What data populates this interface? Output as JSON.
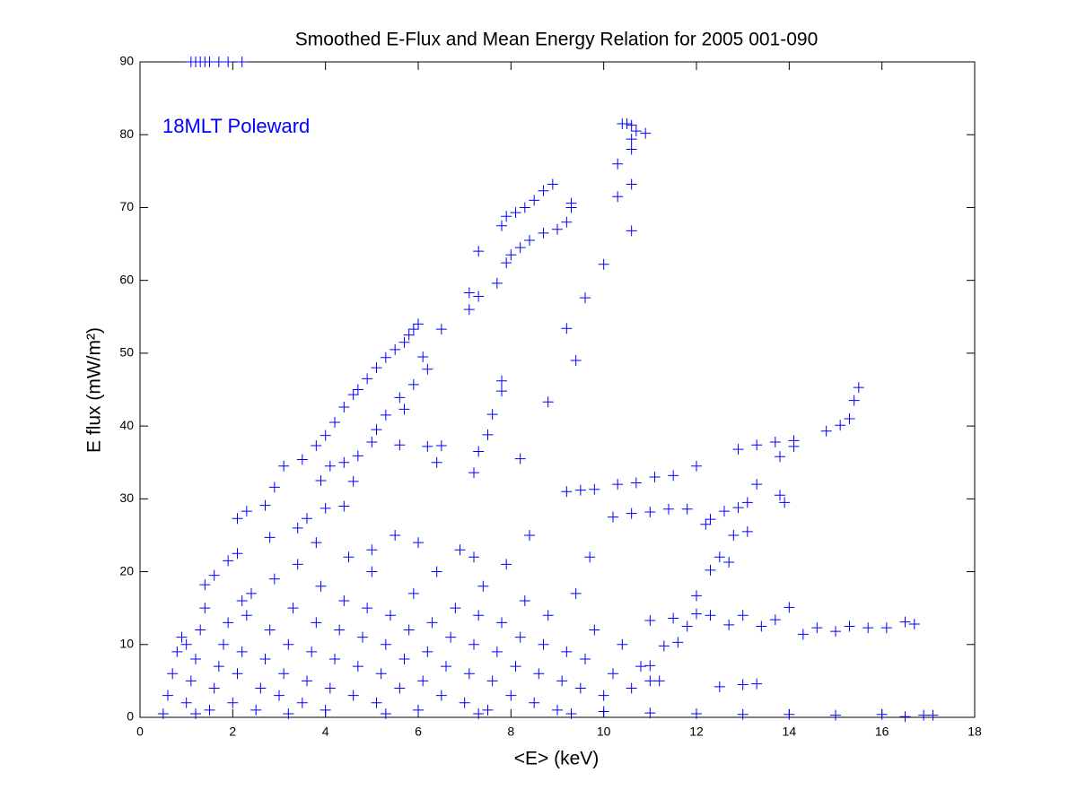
{
  "chart_data": {
    "type": "scatter",
    "title": "Smoothed E-Flux and Mean Energy Relation for 2005 001-090",
    "xlabel": "<E> (keV)",
    "ylabel": "E flux (mW/m²)",
    "annotation": "18MLT Poleward",
    "color": "#0000ff",
    "annotation_color": "#0000ff",
    "marker": "plus",
    "xlim": [
      0,
      18
    ],
    "ylim": [
      0,
      90
    ],
    "xticks": [
      0,
      2,
      4,
      6,
      8,
      10,
      12,
      14,
      16,
      18
    ],
    "yticks": [
      0,
      10,
      20,
      30,
      40,
      50,
      60,
      70,
      80,
      90
    ],
    "grid": false,
    "x": [
      1.1,
      1.2,
      1.3,
      1.4,
      1.5,
      1.7,
      1.9,
      2.2,
      10.4,
      10.5,
      10.6,
      10.7,
      10.9,
      10.6,
      10.6,
      10.3,
      10.3,
      10.6,
      10.6,
      10.0,
      7.8,
      7.9,
      8.1,
      8.3,
      8.5,
      8.7,
      8.9,
      9.3,
      9.3,
      9.2,
      9.0,
      8.7,
      8.4,
      8.2,
      8.0,
      7.9,
      7.7,
      7.3,
      7.1,
      7.1,
      7.3,
      9.2,
      9.6,
      9.4,
      8.8,
      6.0,
      5.9,
      5.8,
      5.7,
      5.5,
      5.3,
      5.1,
      4.9,
      4.7,
      4.6,
      4.4,
      4.2,
      4.0,
      3.8,
      3.5,
      3.1,
      2.9,
      2.7,
      2.3,
      2.1,
      2.1,
      1.9,
      1.6,
      1.4,
      6.1,
      6.2,
      6.5,
      5.9,
      5.6,
      5.7,
      5.3,
      5.1,
      5.0,
      5.6,
      6.2,
      6.5,
      6.4,
      7.8,
      7.8,
      7.6,
      7.5,
      7.3,
      7.2,
      8.2,
      4.7,
      4.4,
      4.1,
      3.9,
      4.6,
      4.4,
      4.0,
      3.6,
      3.4,
      2.8,
      9.2,
      9.5,
      9.8,
      10.3,
      10.7,
      11.1,
      11.5,
      12.0,
      12.9,
      13.3,
      13.7,
      14.1,
      14.1,
      14.8,
      15.1,
      15.3,
      15.4,
      15.5,
      13.8,
      13.3,
      13.8,
      13.9,
      13.1,
      12.9,
      12.6,
      12.2,
      10.2,
      10.6,
      11.0,
      11.4,
      11.8,
      12.3,
      13.1,
      12.8,
      12.5,
      12.7,
      12.3,
      12.0,
      11.0,
      11.5,
      12.0,
      12.3,
      12.7,
      13.0,
      13.4,
      13.7,
      14.0,
      14.3,
      14.6,
      15.0,
      15.3,
      15.7,
      16.1,
      16.5,
      16.7,
      11.8,
      11.3,
      11.6,
      11.0,
      12.5,
      13.0,
      13.3,
      10,
      11,
      12,
      13,
      14,
      15,
      16,
      16.5,
      16.9,
      17.1,
      0.5,
      0.6,
      0.7,
      0.8,
      0.9,
      1.0,
      1.1,
      1.2,
      1.3,
      1.4,
      1.5,
      1.6,
      1.7,
      1.8,
      1.9,
      2.0,
      2.1,
      2.2,
      2.3,
      2.4,
      2.5,
      2.6,
      2.7,
      2.8,
      2.9,
      3.0,
      3.1,
      3.2,
      3.3,
      3.4,
      3.5,
      3.6,
      3.7,
      3.8,
      3.9,
      4.0,
      4.1,
      4.2,
      4.3,
      4.4,
      4.5,
      4.6,
      4.7,
      4.8,
      4.9,
      5.0,
      5.1,
      5.2,
      5.3,
      5.4,
      5.5,
      5.6,
      5.7,
      5.8,
      5.9,
      6.0,
      6.1,
      6.2,
      6.3,
      6.4,
      6.5,
      6.6,
      6.7,
      6.8,
      6.9,
      7.0,
      7.1,
      7.2,
      7.3,
      7.4,
      7.5,
      7.6,
      7.7,
      7.8,
      7.9,
      8.0,
      8.1,
      8.2,
      8.3,
      8.5,
      8.6,
      8.7,
      8.8,
      9.0,
      9.1,
      9.2,
      9.4,
      9.5,
      9.6,
      9.8,
      10.0,
      10.2,
      10.4,
      10.6,
      10.8,
      11.0,
      11.2,
      9.7,
      8.4,
      7.2,
      6.0,
      5.0,
      3.8,
      2.2,
      1.0,
      1.2,
      3.2,
      5.3,
      7.3,
      9.3
    ],
    "values": [
      90,
      90,
      90,
      90,
      90,
      90,
      90,
      90,
      81.5,
      81.5,
      81.3,
      80.5,
      80.2,
      79.4,
      78,
      76,
      71.5,
      73.2,
      66.8,
      62.2,
      67.5,
      68.8,
      69.3,
      70,
      71,
      72.3,
      73.2,
      70.6,
      70,
      68,
      67,
      66.5,
      65.5,
      64.5,
      63.5,
      62.4,
      59.6,
      64,
      58.3,
      56,
      57.8,
      53.4,
      57.6,
      49,
      43.3,
      54,
      53.3,
      52.5,
      51.5,
      50.5,
      49.4,
      48,
      46.5,
      45,
      44.3,
      42.6,
      40.5,
      38.7,
      37.3,
      35.4,
      34.5,
      31.6,
      29.1,
      28.3,
      27.3,
      22.5,
      21.5,
      19.5,
      18.2,
      49.5,
      47.8,
      53.3,
      45.7,
      43.9,
      42.3,
      41.5,
      39.5,
      37.8,
      37.4,
      37.2,
      37.3,
      35,
      46.2,
      44.8,
      41.6,
      38.8,
      36.5,
      33.6,
      35.5,
      35.9,
      35,
      34.5,
      32.5,
      32.4,
      29,
      28.7,
      27.3,
      26,
      24.7,
      31,
      31.2,
      31.3,
      32,
      32.2,
      33,
      33.2,
      34.5,
      36.8,
      37.4,
      37.8,
      38,
      37.2,
      39.3,
      40.1,
      41,
      43.5,
      45.3,
      35.8,
      32,
      30.5,
      29.5,
      29.5,
      28.8,
      28.3,
      26.5,
      27.5,
      28,
      28.2,
      28.6,
      28.6,
      27.2,
      25.5,
      25,
      22,
      21.3,
      20.2,
      16.7,
      13.3,
      13.6,
      14.2,
      14,
      12.7,
      14,
      12.5,
      13.4,
      15.1,
      11.4,
      12.3,
      11.8,
      12.5,
      12.3,
      12.3,
      13.1,
      12.8,
      12.5,
      9.8,
      10.3,
      7.1,
      4.2,
      4.5,
      4.6,
      0.8,
      0.6,
      0.5,
      0.4,
      0.4,
      0.3,
      0.4,
      0.1,
      0.3,
      0.3,
      0.5,
      3,
      6,
      9,
      11,
      2,
      5,
      8,
      12,
      15,
      1,
      4,
      7,
      10,
      13,
      2,
      6,
      9,
      14,
      17,
      1,
      4,
      8,
      12,
      19,
      3,
      6,
      10,
      15,
      21,
      2,
      5,
      9,
      13,
      18,
      1,
      4,
      8,
      12,
      16,
      22,
      3,
      7,
      11,
      15,
      20,
      2,
      6,
      10,
      14,
      25,
      4,
      8,
      12,
      17,
      1,
      5,
      9,
      13,
      20,
      3,
      7,
      11,
      15,
      23,
      2,
      6,
      10,
      14,
      18,
      1,
      5,
      9,
      13,
      21,
      3,
      7,
      11,
      16,
      2,
      6,
      10,
      14,
      1,
      5,
      9,
      17,
      4,
      8,
      12,
      3,
      6,
      10,
      4,
      7,
      5,
      5,
      22,
      25,
      22,
      24,
      23,
      24,
      16,
      10,
      0.5,
      0.5,
      0.5,
      0.5,
      0.5
    ]
  }
}
